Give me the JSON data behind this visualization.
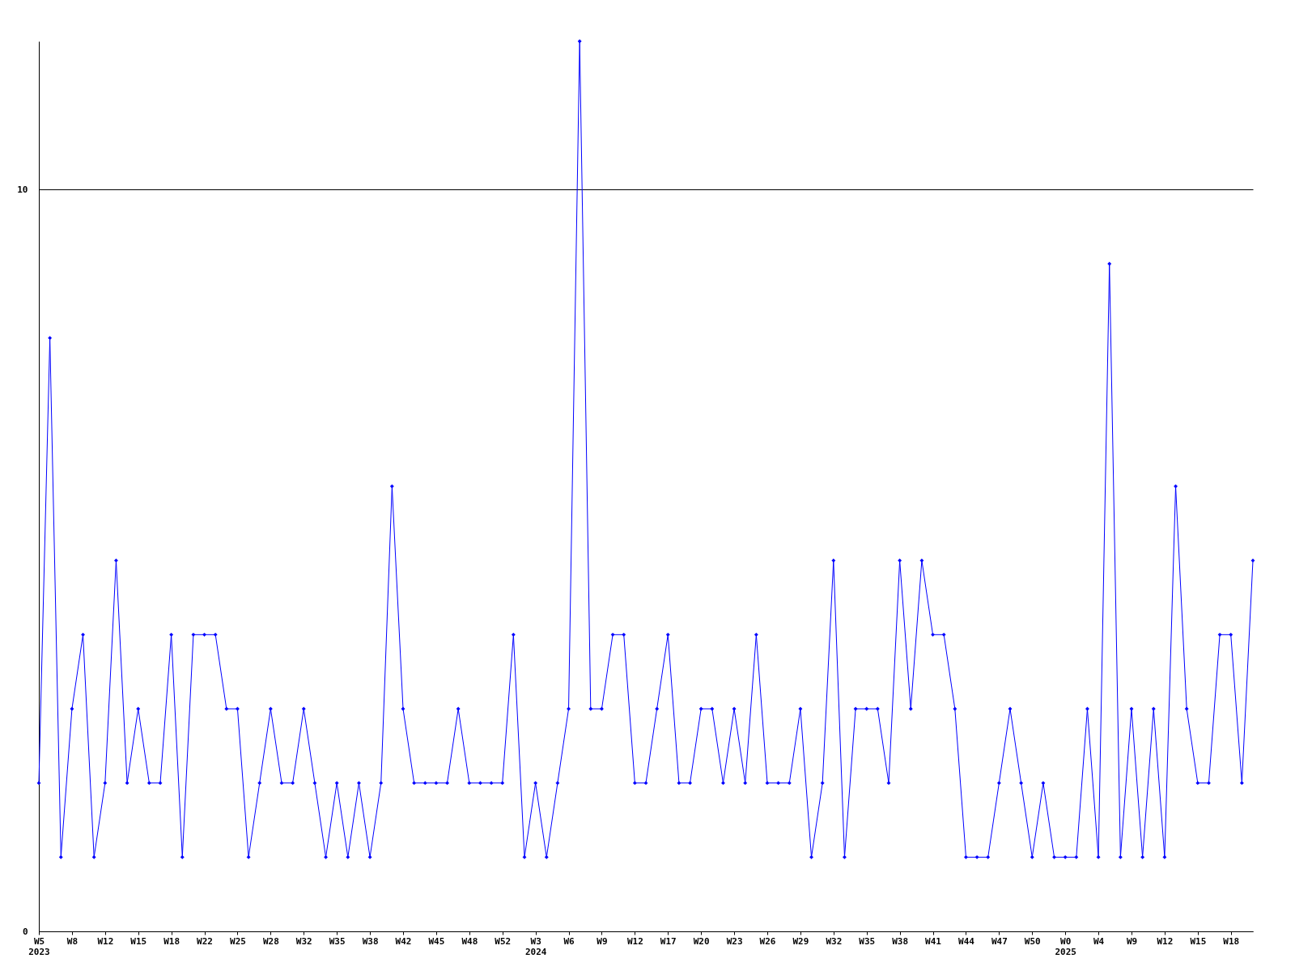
{
  "chart_data": {
    "type": "line",
    "categories": [
      "W5\n2023",
      null,
      null,
      "W8",
      null,
      null,
      "W12",
      null,
      null,
      "W15",
      null,
      null,
      "W18",
      null,
      null,
      "W22",
      null,
      null,
      "W25",
      null,
      null,
      "W28",
      null,
      null,
      "W32",
      null,
      null,
      "W35",
      null,
      null,
      "W38",
      null,
      null,
      "W42",
      null,
      null,
      "W45",
      null,
      null,
      "W48",
      null,
      null,
      "W52",
      null,
      null,
      "W3\n2024",
      null,
      null,
      "W6",
      null,
      null,
      "W9",
      null,
      null,
      "W12",
      null,
      null,
      "W17",
      null,
      null,
      "W20",
      null,
      null,
      "W23",
      null,
      null,
      "W26",
      null,
      null,
      "W29",
      null,
      null,
      "W32",
      null,
      null,
      "W35",
      null,
      null,
      "W38",
      null,
      null,
      "W41",
      null,
      null,
      "W44",
      null,
      null,
      "W47",
      null,
      null,
      "W50",
      null,
      null,
      "W0\n2025",
      null,
      null,
      "W4",
      null,
      null,
      "W9",
      null,
      null,
      "W12",
      null,
      null,
      "W15",
      null,
      null,
      "W18",
      null,
      null
    ],
    "series": [
      {
        "color": "#0000ff",
        "values": [
          2,
          8,
          1,
          3,
          4,
          1,
          2,
          5,
          2,
          3,
          2,
          2,
          4,
          1,
          4,
          4,
          4,
          3,
          3,
          1,
          2,
          3,
          2,
          2,
          3,
          2,
          1,
          2,
          1,
          2,
          1,
          2,
          6,
          3,
          2,
          2,
          2,
          2,
          3,
          2,
          2,
          2,
          2,
          4,
          1,
          2,
          1,
          2,
          3,
          12,
          3,
          3,
          4,
          4,
          2,
          2,
          3,
          4,
          2,
          2,
          3,
          3,
          2,
          3,
          2,
          4,
          2,
          2,
          2,
          3,
          1,
          2,
          5,
          1,
          3,
          3,
          3,
          2,
          5,
          3,
          5,
          4,
          4,
          3,
          1,
          1,
          1,
          2,
          3,
          2,
          1,
          2,
          1,
          1,
          1,
          3,
          1,
          9,
          1,
          3,
          1,
          3,
          1,
          6,
          3,
          2,
          2,
          4,
          4,
          2,
          5
        ]
      }
    ],
    "ylim": [
      0,
      12
    ],
    "yticks": [
      0,
      10
    ],
    "grid": "y",
    "legend": false,
    "marker": "diamond",
    "line_style": "solid"
  }
}
